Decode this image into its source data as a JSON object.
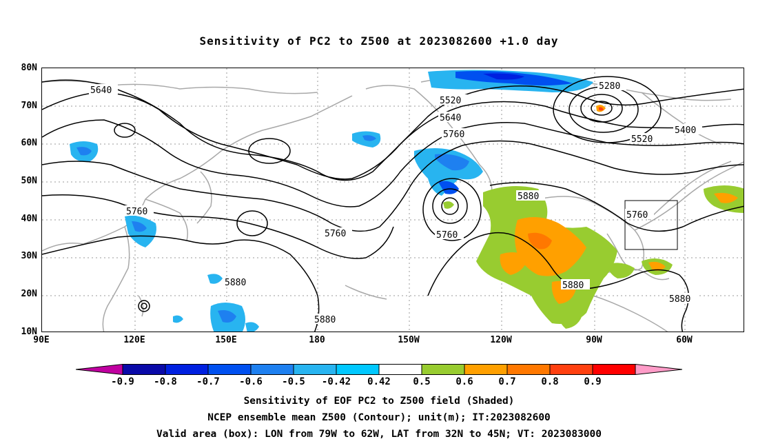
{
  "title": "Sensitivity of PC2 to Z500 at 2023082600 +1.0 day",
  "lat_labels": [
    "80N",
    "70N",
    "60N",
    "50N",
    "40N",
    "30N",
    "20N",
    "10N"
  ],
  "lon_labels": [
    "90E",
    "120E",
    "150E",
    "180",
    "150W",
    "120W",
    "90W",
    "60W"
  ],
  "contour_labels": [
    "5640",
    "5520",
    "5640",
    "5760",
    "5280",
    "5400",
    "5520",
    "5760",
    "5760",
    "5760",
    "5880",
    "5760",
    "5880",
    "5880",
    "5880",
    "5880"
  ],
  "colorbar": {
    "labels": [
      "-0.9",
      "-0.8",
      "-0.7",
      "-0.6",
      "-0.5",
      "-0.42",
      "0.42",
      "0.5",
      "0.6",
      "0.7",
      "0.8",
      "0.9"
    ],
    "colors": [
      "#c000a0",
      "#0a0aa8",
      "#0020e0",
      "#0050f0",
      "#1e80f0",
      "#28b4f0",
      "#00c8ff",
      "#ffffff",
      "#98cc30",
      "#ffa000",
      "#ff7800",
      "#ff4010",
      "#ff0000",
      "#ff9cc8"
    ]
  },
  "footer": {
    "line1": "Sensitivity of EOF PC2 to Z500 field (Shaded)",
    "line2": "NCEP ensemble mean Z500 (Contour); unit(m); IT:2023082600",
    "line3": "Valid area (box): LON from 79W to 62W, LAT from 32N to 45N; VT: 2023083000"
  }
}
